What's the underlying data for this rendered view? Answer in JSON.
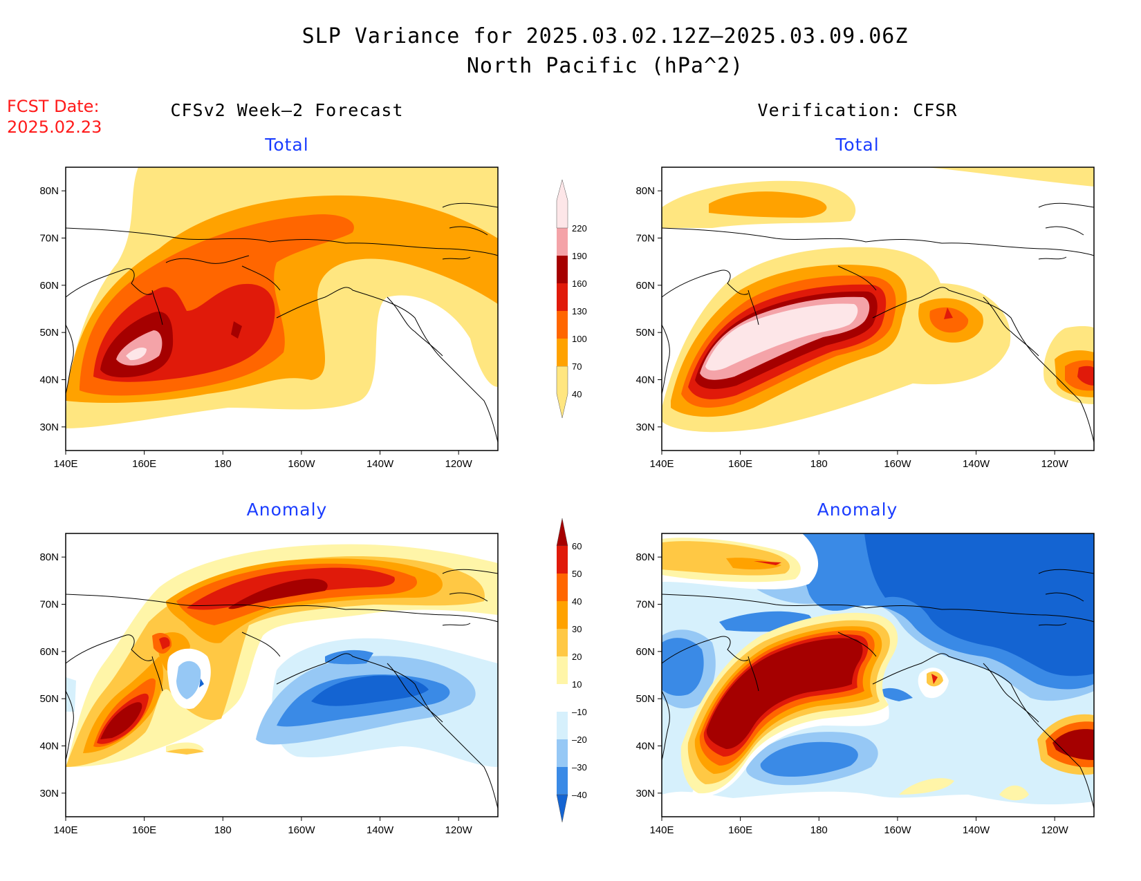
{
  "title_line1": "SLP Variance for 2025.03.02.12Z–2025.03.09.06Z",
  "title_line2": "North Pacific (hPa^2)",
  "fcst_label": "FCST Date:",
  "fcst_date": "2025.02.23",
  "columns": {
    "left": "CFSv2 Week–2 Forecast",
    "right": "Verification: CFSR"
  },
  "panels": [
    {
      "id": "forecast-total",
      "subtitle": "Total",
      "kind": "total"
    },
    {
      "id": "verif-total",
      "subtitle": "Total",
      "kind": "total"
    },
    {
      "id": "forecast-anomaly",
      "subtitle": "Anomaly",
      "kind": "anomaly"
    },
    {
      "id": "verif-anomaly",
      "subtitle": "Anomaly",
      "kind": "anomaly"
    }
  ],
  "axes": {
    "lat_labels": [
      "30N",
      "40N",
      "50N",
      "60N",
      "70N",
      "80N"
    ],
    "lat_values": [
      30,
      40,
      50,
      60,
      70,
      80
    ],
    "lon_labels": [
      "140E",
      "160E",
      "180",
      "160W",
      "140W",
      "120W"
    ],
    "lon_values": [
      140,
      160,
      180,
      200,
      220,
      240
    ],
    "lat_range": [
      25,
      85
    ],
    "lon_range": [
      140,
      250
    ]
  },
  "total_colorbar": {
    "labels": [
      "40",
      "70",
      "100",
      "130",
      "160",
      "190",
      "220"
    ],
    "colors": [
      "#ffe680",
      "#ffa200",
      "#ff6600",
      "#e01a0a",
      "#a50000",
      "#f4a3a8",
      "#fde6e8"
    ]
  },
  "anomaly_colorbar": {
    "labels": [
      "–40",
      "–30",
      "–20",
      "–10",
      "10",
      "20",
      "30",
      "40",
      "50",
      "60"
    ],
    "colors": [
      "#1464d2",
      "#3a8ae6",
      "#96c8f5",
      "#d6f0fc",
      "#ffffff",
      "#fff5a8",
      "#ffc844",
      "#ffa200",
      "#ff6600",
      "#e01a0a",
      "#a50000"
    ]
  }
}
